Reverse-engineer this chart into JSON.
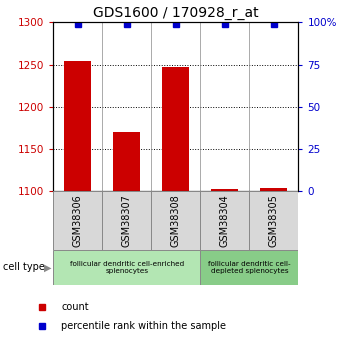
{
  "title": "GDS1600 / 170928_r_at",
  "samples": [
    "GSM38306",
    "GSM38307",
    "GSM38308",
    "GSM38304",
    "GSM38305"
  ],
  "counts": [
    1254,
    1170,
    1247,
    1103,
    1104
  ],
  "percentiles": [
    99,
    99,
    99,
    99,
    99
  ],
  "ylim_left": [
    1100,
    1300
  ],
  "ylim_right": [
    0,
    100
  ],
  "yticks_left": [
    1100,
    1150,
    1200,
    1250,
    1300
  ],
  "yticks_right": [
    0,
    25,
    50,
    75,
    100
  ],
  "grid_values": [
    1150,
    1200,
    1250
  ],
  "bar_color": "#cc0000",
  "dot_color": "#0000cc",
  "bar_width": 0.55,
  "groups": [
    {
      "label": "follicular dendritic cell-enriched\nsplenocytes",
      "samples": [
        0,
        1,
        2
      ],
      "color": "#b3e6b3"
    },
    {
      "label": "follicular dendritic cell-\ndepleted splenocytes",
      "samples": [
        3,
        4
      ],
      "color": "#88cc88"
    }
  ],
  "cell_type_label": "cell type",
  "legend_count_label": "count",
  "legend_percentile_label": "percentile rank within the sample",
  "left_tick_color": "#cc0000",
  "right_tick_color": "#0000cc",
  "tick_label_fontsize": 7.5,
  "title_fontsize": 10,
  "sample_box_color": "#d8d8d8",
  "sample_box_edge": "#888888"
}
